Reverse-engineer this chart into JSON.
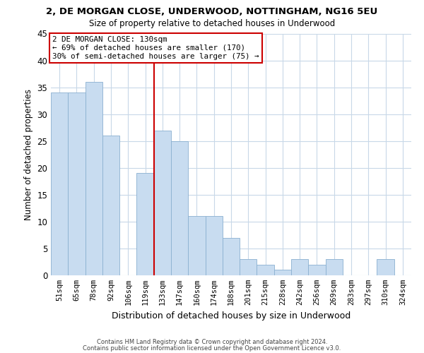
{
  "title": "2, DE MORGAN CLOSE, UNDERWOOD, NOTTINGHAM, NG16 5EU",
  "subtitle": "Size of property relative to detached houses in Underwood",
  "xlabel": "Distribution of detached houses by size in Underwood",
  "ylabel": "Number of detached properties",
  "bar_color": "#c8dcf0",
  "bar_edge_color": "#8ab0d0",
  "bin_labels": [
    "51sqm",
    "65sqm",
    "78sqm",
    "92sqm",
    "106sqm",
    "119sqm",
    "133sqm",
    "147sqm",
    "160sqm",
    "174sqm",
    "188sqm",
    "201sqm",
    "215sqm",
    "228sqm",
    "242sqm",
    "256sqm",
    "269sqm",
    "283sqm",
    "297sqm",
    "310sqm",
    "324sqm"
  ],
  "bar_heights": [
    34,
    34,
    36,
    26,
    0,
    19,
    27,
    25,
    11,
    11,
    7,
    3,
    2,
    1,
    3,
    2,
    3,
    0,
    0,
    3,
    0
  ],
  "ylim": [
    0,
    45
  ],
  "yticks": [
    0,
    5,
    10,
    15,
    20,
    25,
    30,
    35,
    40,
    45
  ],
  "ref_line_x": 6,
  "ref_line_color": "#cc0000",
  "annotation_line1": "2 DE MORGAN CLOSE: 130sqm",
  "annotation_line2": "← 69% of detached houses are smaller (170)",
  "annotation_line3": "30% of semi-detached houses are larger (75) →",
  "annotation_box_color": "#ffffff",
  "annotation_box_edgecolor": "#cc0000",
  "footer_line1": "Contains HM Land Registry data © Crown copyright and database right 2024.",
  "footer_line2": "Contains public sector information licensed under the Open Government Licence v3.0.",
  "background_color": "#ffffff",
  "grid_color": "#c8d8e8"
}
